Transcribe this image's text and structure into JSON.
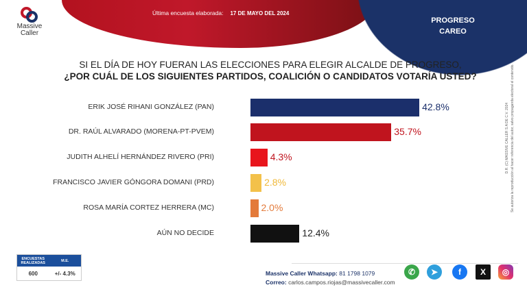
{
  "header": {
    "survey_label": "Última encuesta elaborada:",
    "survey_date": "17 DE MAYO DEL 2024",
    "region": "PROGRESO",
    "subtitle": "CAREO"
  },
  "logo": {
    "line1": "Massive",
    "line2": "Caller"
  },
  "question": {
    "line1": "SI EL DÍA DE HOY FUERAN LAS ELECCIONES PARA ELEGIR ALCALDE DE PROGRESO,",
    "line2": "¿POR CUÁL DE LOS SIGUIENTES PARTIDOS, COALICIÓN O CANDIDATOS VOTARÍA USTED?"
  },
  "chart_data": {
    "type": "bar",
    "orientation": "horizontal",
    "categories": [
      "ERIK JOSÉ RIHANI GONZÁLEZ (PAN)",
      "DR. RAÚL ALVARADO (MORENA-PT-PVEM)",
      "JUDITH ALHELÍ HERNÁNDEZ RIVERO (PRI)",
      "FRANCISCO JAVIER GÓNGORA DOMANI (PRD)",
      "ROSA MARÍA CORTEZ HERRERA (MC)",
      "AÚN NO DECIDE"
    ],
    "values": [
      42.8,
      35.7,
      4.3,
      2.8,
      2.0,
      12.4
    ],
    "labels": [
      "42.8%",
      "35.7%",
      "4.3%",
      "2.8%",
      "2.0%",
      "12.4%"
    ],
    "colors": [
      "#1b2f6b",
      "#c0141e",
      "#e8151c",
      "#f3c14a",
      "#e37a3a",
      "#111111"
    ],
    "label_colors": [
      "#1b2f6b",
      "#c0141e",
      "#c0141e",
      "#f0b93a",
      "#e37a3a",
      "#222222"
    ]
  },
  "side_note": {
    "line1": "D.R. (C) MASSIVE CALLER S.A DE C.V. 2024",
    "line2": "Se autoriza la reproducción al hacer referencia del autor, salvo propaganda electoral el contenido."
  },
  "stats": {
    "h1": "ENCUESTAS REALIZADAS",
    "h2": "M.E.",
    "v1": "600",
    "v2": "+/- 4.3%"
  },
  "contact": {
    "wa_label": "Massive Caller Whatsapp:",
    "wa": "81 1798 1079",
    "mail_label": "Correo:",
    "mail": "carlos.campos.riojas@massivecaller.com"
  },
  "social": [
    "whatsapp",
    "telegram",
    "facebook",
    "x",
    "instagram"
  ]
}
